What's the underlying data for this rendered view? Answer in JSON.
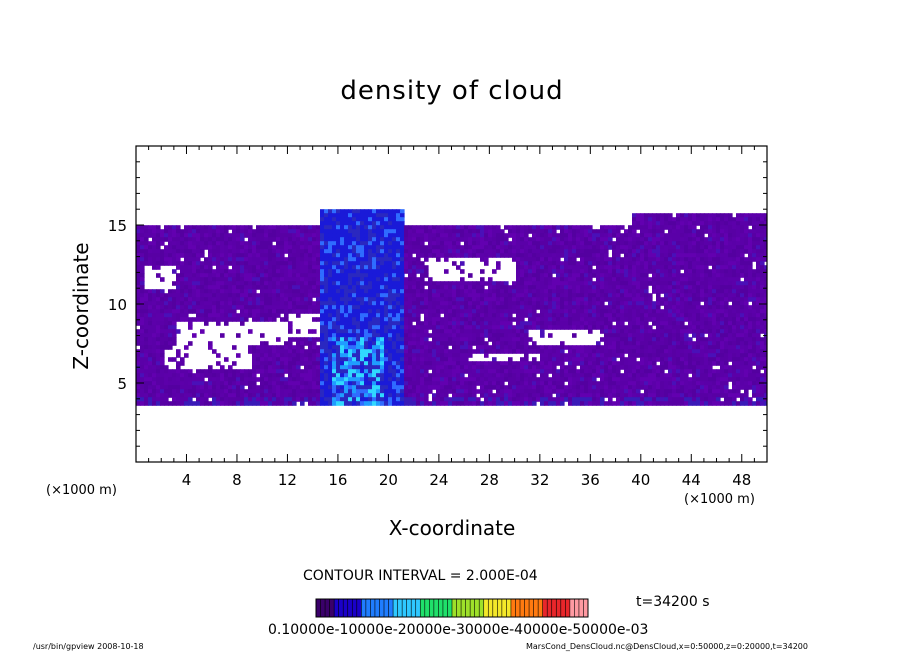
{
  "chart_data": {
    "type": "heatmap",
    "title": "density of cloud",
    "xlabel": "X-coordinate",
    "ylabel": "Z-coordinate",
    "x_scale_note": "(×1000 m)",
    "xlim": [
      0,
      50
    ],
    "ylim": [
      0,
      20
    ],
    "x_ticks": [
      4,
      8,
      12,
      16,
      20,
      24,
      28,
      32,
      36,
      40,
      44,
      48
    ],
    "y_ticks": [
      5,
      10,
      15
    ],
    "contour_interval": "CONTOUR INTERVAL = 2.000E-04",
    "time": "t=34200 s",
    "colorbar_tick_text": "0.10000e-10000e-20000e-30000e-40000e-50000e-03",
    "colorbar_colors": [
      "#3a006a",
      "#1a00c8",
      "#1f7dff",
      "#2fc8ff",
      "#1fe06a",
      "#9ee02a",
      "#f4e82a",
      "#ff7a10",
      "#e8262a",
      "#ff9aa2"
    ],
    "cloud_layer": {
      "z_base": 3.6,
      "z_top": 15,
      "tower_x": [
        14.5,
        21
      ],
      "tower_top": 16
    }
  },
  "footer": {
    "left": "/usr/bin/gpview   2008-10-18",
    "right": "MarsCond_DensCloud.nc@DensCloud,x=0:50000,z=0:20000,t=34200"
  }
}
